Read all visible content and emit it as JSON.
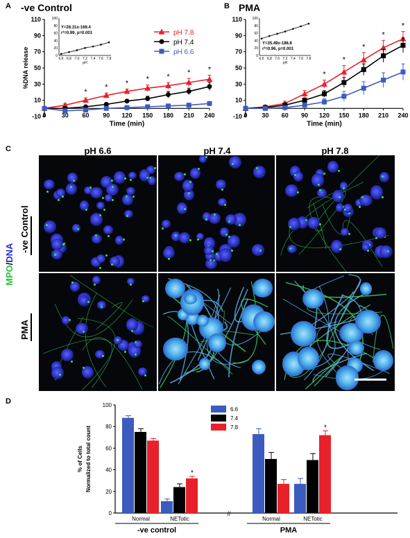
{
  "panels": {
    "a": {
      "letter": "A",
      "title": "-ve Control"
    },
    "b": {
      "letter": "B",
      "title": "PMA"
    },
    "c": {
      "letter": "C"
    },
    "d": {
      "letter": "D"
    }
  },
  "chart_data": [
    {
      "id": "A",
      "type": "line",
      "title": "-ve Control",
      "xlabel": "Time (min)",
      "ylabel": "%DNA release",
      "x": [
        0,
        30,
        60,
        90,
        120,
        150,
        180,
        210,
        240
      ],
      "xlim": [
        0,
        240
      ],
      "ylim": [
        -10,
        110
      ],
      "yticks": [
        -10,
        10,
        30,
        50,
        70,
        90,
        110
      ],
      "series": [
        {
          "name": "pH 7.8",
          "color": "#e8202a",
          "marker": "triangle",
          "values": [
            0,
            4,
            10,
            16,
            21,
            25,
            28,
            32,
            36
          ],
          "errors": [
            1,
            2,
            3,
            3,
            3,
            4,
            4,
            5,
            5
          ]
        },
        {
          "name": "pH 7.4",
          "color": "#000000",
          "marker": "circle",
          "values": [
            0,
            0,
            2,
            5,
            9,
            12,
            17,
            21,
            27
          ],
          "errors": [
            1,
            1,
            1,
            2,
            2,
            3,
            4,
            4,
            5
          ]
        },
        {
          "name": "pH 6.6",
          "color": "#3b5bbf",
          "marker": "square",
          "values": [
            0,
            -3,
            -2,
            0,
            1,
            2,
            3,
            4,
            6
          ],
          "errors": [
            1,
            1,
            1,
            1,
            1,
            1,
            1,
            2,
            2
          ]
        }
      ],
      "asterisk_x": [
        60,
        90,
        120,
        150,
        180,
        210,
        240
      ],
      "inset": {
        "equation": "Y=26.31x-169.4",
        "stats": "r²=0.99, p=0.001",
        "xlabel": "pH",
        "x": [
          6.6,
          6.8,
          7.0,
          7.2,
          7.4,
          7.6,
          7.8
        ],
        "y": [
          4,
          9,
          14,
          20,
          24,
          29,
          35
        ],
        "yticks": [
          0,
          20,
          40,
          60,
          80,
          100
        ],
        "xticks": [
          "6.6",
          "6.8",
          "7.0",
          "7.2",
          "7.4",
          "7.6",
          "7.8"
        ]
      }
    },
    {
      "id": "B",
      "type": "line",
      "title": "PMA",
      "xlabel": "Time (min)",
      "ylabel": "",
      "x": [
        0,
        30,
        60,
        90,
        120,
        150,
        180,
        210,
        240
      ],
      "xlim": [
        0,
        240
      ],
      "ylim": [
        -10,
        110
      ],
      "yticks": [
        -10,
        10,
        30,
        50,
        70,
        90,
        110
      ],
      "series": [
        {
          "name": "pH 7.8",
          "color": "#e8202a",
          "marker": "triangle",
          "values": [
            0,
            2,
            6,
            18,
            30,
            45,
            60,
            75,
            86
          ],
          "errors": [
            2,
            2,
            3,
            4,
            5,
            8,
            9,
            9,
            9
          ]
        },
        {
          "name": "pH 7.4",
          "color": "#000000",
          "marker": "square",
          "values": [
            0,
            1,
            4,
            10,
            18,
            32,
            48,
            65,
            78
          ],
          "errors": [
            2,
            2,
            3,
            3,
            4,
            6,
            7,
            8,
            9
          ]
        },
        {
          "name": "pH 6.6",
          "color": "#3b5bbf",
          "marker": "square",
          "values": [
            0,
            0,
            1,
            4,
            8,
            15,
            25,
            35,
            45
          ],
          "errors": [
            1,
            2,
            2,
            3,
            4,
            6,
            8,
            9,
            10
          ]
        }
      ],
      "asterisk_x": [
        120,
        150,
        180,
        210,
        240
      ],
      "inset": {
        "equation": "Y=35.49x-186.8",
        "stats": "r²=0.96, p=0.001",
        "xlabel": "pH",
        "x": [
          6.6,
          6.8,
          7.0,
          7.2,
          7.4,
          7.6,
          7.8
        ],
        "y": [
          45,
          52,
          58,
          64,
          71,
          78,
          85
        ],
        "yticks": [
          0,
          20,
          40,
          60,
          80,
          100
        ],
        "xticks": [
          "6.6",
          "6.8",
          "7.0",
          "7.2",
          "7.4",
          "7.6",
          "7.8"
        ]
      }
    },
    {
      "id": "D",
      "type": "bar",
      "ylabel": "% of Cells\nNormalized to total count",
      "ylim": [
        0,
        100
      ],
      "yticks": [
        0,
        20,
        40,
        60,
        80,
        100
      ],
      "legend": [
        {
          "name": "6.6",
          "color": "#3b5bbf"
        },
        {
          "name": "7.4",
          "color": "#000000"
        },
        {
          "name": "7.8",
          "color": "#e8202a"
        }
      ],
      "groups": [
        {
          "label": "Normal",
          "condition": "-ve control",
          "values": [
            88,
            75,
            67
          ],
          "errors": [
            2,
            3,
            2
          ],
          "asterisk": false
        },
        {
          "label": "NETotic",
          "condition": "-ve control",
          "values": [
            11,
            24,
            32
          ],
          "errors": [
            2,
            3,
            2
          ],
          "asterisk": true
        },
        {
          "label": "Normal",
          "condition": "PMA",
          "values": [
            73,
            50,
            27
          ],
          "errors": [
            5,
            6,
            4
          ],
          "asterisk": false
        },
        {
          "label": "NETotic",
          "condition": "PMA",
          "values": [
            27,
            49,
            72
          ],
          "errors": [
            5,
            6,
            4
          ],
          "asterisk": true
        }
      ],
      "conditions": [
        "-ve control",
        "PMA"
      ]
    }
  ],
  "micrographs": {
    "columns": [
      "pH 6.6",
      "pH 7.4",
      "pH 7.8"
    ],
    "rows": [
      "-ve Control",
      "PMA"
    ],
    "stain_label_mpo": "MPO",
    "stain_label_sep": "/",
    "stain_label_dna": "DNA",
    "mpo_color": "#22c43a",
    "dna_color": "#2430c8"
  }
}
